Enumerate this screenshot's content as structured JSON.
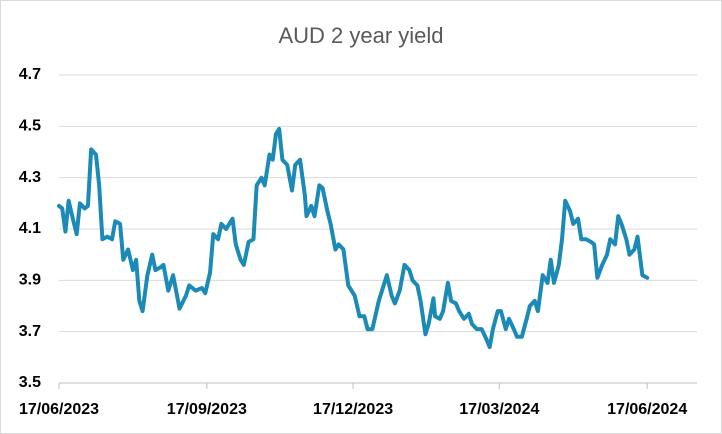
{
  "chart_data": {
    "type": "line",
    "title": "AUD 2 year yield",
    "x": [
      "17/06/2023",
      "19/06/2023",
      "21/06/2023",
      "23/06/2023",
      "26/06/2023",
      "28/06/2023",
      "30/06/2023",
      "03/07/2023",
      "05/07/2023",
      "07/07/2023",
      "10/07/2023",
      "12/07/2023",
      "14/07/2023",
      "17/07/2023",
      "20/07/2023",
      "22/07/2023",
      "25/07/2023",
      "27/07/2023",
      "30/07/2023",
      "02/08/2023",
      "04/08/2023",
      "06/08/2023",
      "08/08/2023",
      "11/08/2023",
      "14/08/2023",
      "16/08/2023",
      "19/08/2023",
      "21/08/2023",
      "24/08/2023",
      "27/08/2023",
      "31/08/2023",
      "04/09/2023",
      "06/09/2023",
      "10/09/2023",
      "14/09/2023",
      "16/09/2023",
      "19/09/2023",
      "21/09/2023",
      "24/09/2023",
      "26/09/2023",
      "29/09/2023",
      "03/10/2023",
      "05/10/2023",
      "08/10/2023",
      "10/10/2023",
      "13/10/2023",
      "16/10/2023",
      "18/10/2023",
      "21/10/2023",
      "23/10/2023",
      "26/10/2023",
      "28/10/2023",
      "30/10/2023",
      "01/11/2023",
      "03/11/2023",
      "06/11/2023",
      "09/11/2023",
      "11/11/2023",
      "14/11/2023",
      "17/11/2023",
      "18/11/2023",
      "21/11/2023",
      "23/11/2023",
      "26/11/2023",
      "28/11/2023",
      "01/12/2023",
      "03/12/2023",
      "06/12/2023",
      "08/12/2023",
      "11/12/2023",
      "14/12/2023",
      "16/12/2023",
      "18/12/2023",
      "21/12/2023",
      "24/12/2023",
      "26/12/2023",
      "29/12/2023",
      "02/01/2024",
      "05/01/2024",
      "07/01/2024",
      "10/01/2024",
      "12/01/2024",
      "15/01/2024",
      "18/01/2024",
      "21/01/2024",
      "23/01/2024",
      "26/01/2024",
      "28/01/2024",
      "31/01/2024",
      "02/02/2024",
      "05/02/2024",
      "06/02/2024",
      "09/02/2024",
      "11/02/2024",
      "14/02/2024",
      "16/02/2024",
      "19/02/2024",
      "21/02/2024",
      "24/02/2024",
      "27/02/2024",
      "29/02/2024",
      "03/03/2024",
      "06/03/2024",
      "09/03/2024",
      "11/03/2024",
      "13/03/2024",
      "16/03/2024",
      "18/03/2024",
      "21/03/2024",
      "23/03/2024",
      "26/03/2024",
      "28/03/2024",
      "31/03/2024",
      "03/04/2024",
      "05/04/2024",
      "08/04/2024",
      "10/04/2024",
      "13/04/2024",
      "16/04/2024",
      "18/04/2024",
      "20/04/2024",
      "23/04/2024",
      "25/04/2024",
      "27/04/2024",
      "30/04/2024",
      "02/05/2024",
      "05/05/2024",
      "07/05/2024",
      "10/05/2024",
      "13/05/2024",
      "15/05/2024",
      "17/05/2024",
      "20/05/2024",
      "23/05/2024",
      "25/05/2024",
      "28/05/2024",
      "30/05/2024",
      "01/06/2024",
      "04/06/2024",
      "06/06/2024",
      "09/06/2024",
      "11/06/2024",
      "14/06/2024",
      "17/06/2024"
    ],
    "series": [
      {
        "name": "AUD 2 year yield",
        "color": "#1b8ab6",
        "values": [
          4.19,
          4.18,
          4.09,
          4.21,
          4.13,
          4.08,
          4.2,
          4.18,
          4.19,
          4.41,
          4.39,
          4.27,
          4.06,
          4.07,
          4.06,
          4.13,
          4.12,
          3.98,
          4.02,
          3.94,
          3.98,
          3.82,
          3.78,
          3.92,
          4.0,
          3.94,
          3.95,
          3.96,
          3.86,
          3.92,
          3.79,
          3.84,
          3.88,
          3.86,
          3.87,
          3.85,
          3.93,
          4.08,
          4.06,
          4.12,
          4.1,
          4.14,
          4.04,
          3.98,
          3.96,
          4.05,
          4.06,
          4.27,
          4.3,
          4.27,
          4.39,
          4.37,
          4.47,
          4.49,
          4.37,
          4.35,
          4.25,
          4.35,
          4.37,
          4.23,
          4.15,
          4.19,
          4.15,
          4.27,
          4.26,
          4.17,
          4.12,
          4.02,
          4.04,
          4.02,
          3.88,
          3.86,
          3.84,
          3.76,
          3.76,
          3.71,
          3.71,
          3.82,
          3.88,
          3.92,
          3.84,
          3.81,
          3.86,
          3.96,
          3.94,
          3.9,
          3.88,
          3.82,
          3.69,
          3.73,
          3.83,
          3.76,
          3.75,
          3.78,
          3.89,
          3.82,
          3.81,
          3.78,
          3.75,
          3.77,
          3.73,
          3.71,
          3.71,
          3.67,
          3.64,
          3.71,
          3.78,
          3.78,
          3.71,
          3.75,
          3.71,
          3.68,
          3.68,
          3.75,
          3.8,
          3.82,
          3.78,
          3.92,
          3.89,
          3.98,
          3.89,
          3.96,
          4.06,
          4.21,
          4.17,
          4.12,
          4.14,
          4.06,
          4.06,
          4.05,
          4.04,
          3.91,
          3.96,
          4.0,
          4.06,
          4.04,
          4.15,
          4.12,
          4.06,
          4.0,
          4.02,
          4.07,
          3.92,
          3.91
        ]
      }
    ],
    "xlim": [
      "17/06/2023",
      "18/07/2024"
    ],
    "xticks": [
      "17/06/2023",
      "17/09/2023",
      "17/12/2023",
      "17/03/2024",
      "17/06/2024"
    ],
    "ylim": [
      3.5,
      4.7
    ],
    "yticks": [
      3.5,
      3.7,
      3.9,
      4.1,
      4.3,
      4.5,
      4.7
    ],
    "grid": true
  }
}
